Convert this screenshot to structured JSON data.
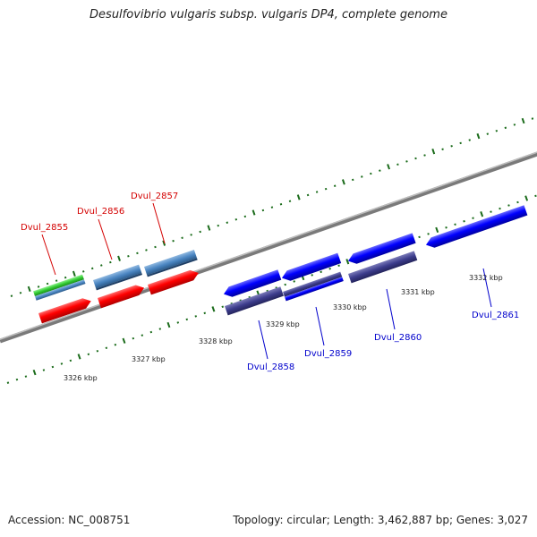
{
  "title": "Desulfovibrio vulgaris subsp. vulgaris DP4, complete genome",
  "footer": {
    "accession": "Accession: NC_008751",
    "summary": "Topology: circular; Length: 3,462,887 bp; Genes: 3,027"
  },
  "colors": {
    "top_genes": "#d40000",
    "bottom_genes": "#0000cc",
    "tick": "#1a6b1a",
    "backbone": "#7a7a7a",
    "cds_red": "#ff0000",
    "cds_blue": "#0000ff",
    "gene_steel": "#4b86c2",
    "gene_green": "#33cc33",
    "gene_navy": "#3c3c8c"
  },
  "axis_labels": [
    "3326 kbp",
    "3327 kbp",
    "3328 kbp",
    "3329 kbp",
    "3330 kbp",
    "3331 kbp",
    "3332 kbp"
  ],
  "gene_labels_top": [
    "Dvul_2855",
    "Dvul_2856",
    "Dvul_2857"
  ],
  "gene_labels_bottom": [
    "Dvul_2858",
    "Dvul_2859",
    "Dvul_2860",
    "Dvul_2861"
  ]
}
